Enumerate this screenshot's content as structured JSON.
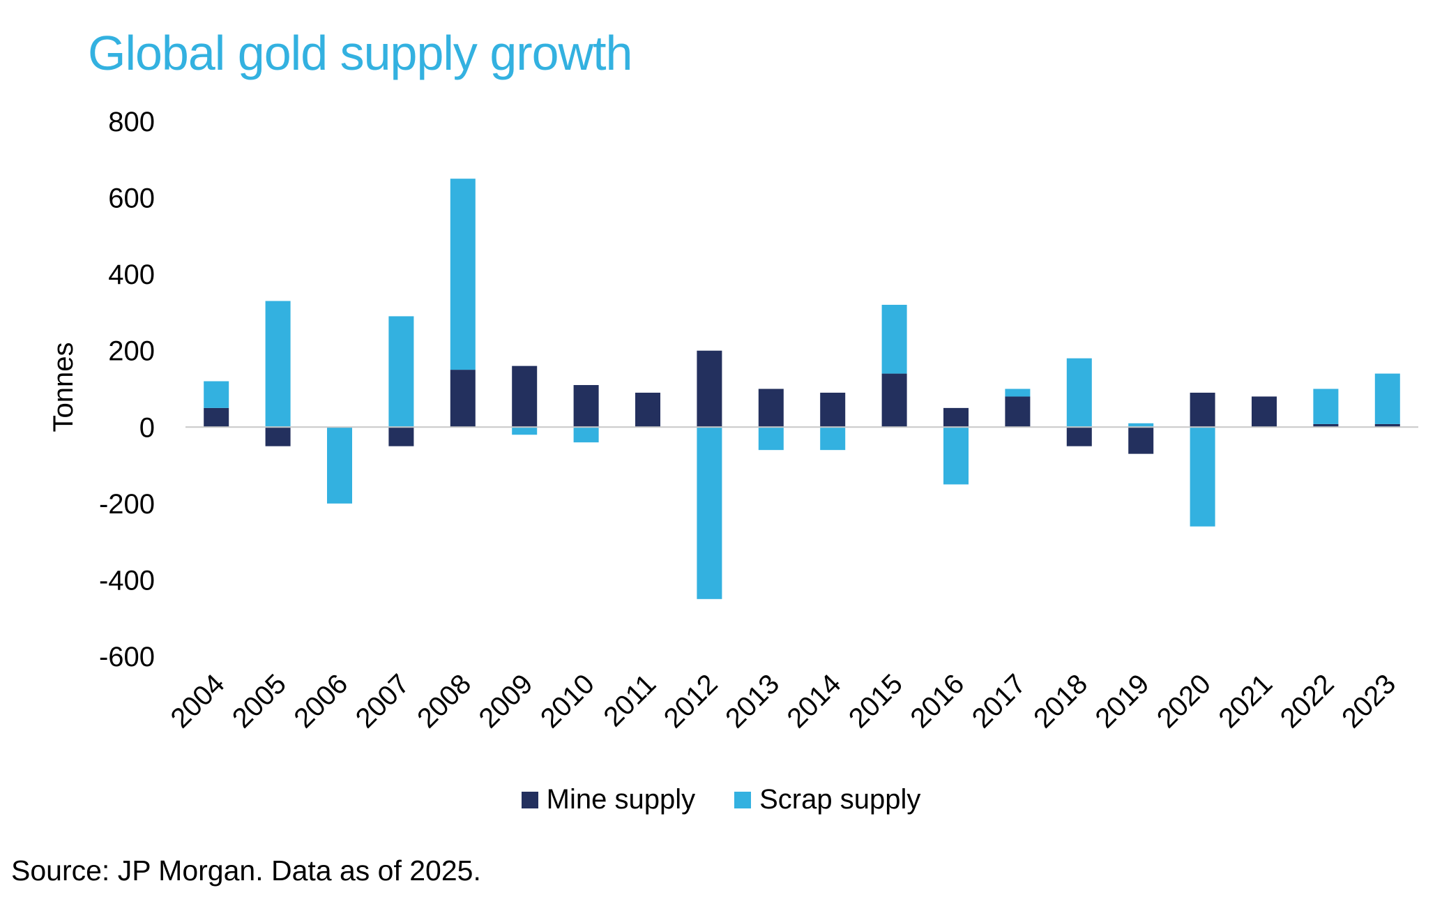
{
  "page": {
    "source": "Source: JP Morgan. Data as of 2025."
  },
  "colors": {
    "mine": "#23305e",
    "scrap": "#33b1e0",
    "title": "#33b1e0",
    "zero_line": "#c8c8c8"
  },
  "chart_data": {
    "type": "bar",
    "stacked": true,
    "title": "Global gold supply growth",
    "xlabel": "",
    "ylabel": "Tonnes",
    "ylim": [
      -600,
      800
    ],
    "yticks": [
      800,
      600,
      400,
      200,
      0,
      -200,
      -400,
      -600
    ],
    "ytick_labels": [
      "800",
      "600",
      "400",
      "200",
      "0",
      "-200",
      "-400",
      "-600"
    ],
    "categories": [
      "2004",
      "2005",
      "2006",
      "2007",
      "2008",
      "2009",
      "2010",
      "2011",
      "2012",
      "2013",
      "2014",
      "2015",
      "2016",
      "2017",
      "2018",
      "2019",
      "2020",
      "2021",
      "2022",
      "2023"
    ],
    "series": [
      {
        "name": "Mine supply",
        "values": [
          50,
          -50,
          0,
          -50,
          150,
          160,
          110,
          90,
          200,
          100,
          90,
          140,
          50,
          80,
          -50,
          -70,
          90,
          80,
          8,
          8
        ]
      },
      {
        "name": "Scrap supply",
        "values": [
          70,
          330,
          -200,
          290,
          500,
          -20,
          -40,
          0,
          -450,
          -60,
          -60,
          180,
          -150,
          20,
          180,
          10,
          -260,
          0,
          92,
          132
        ]
      }
    ],
    "legend_position": "bottom",
    "grid": false
  }
}
